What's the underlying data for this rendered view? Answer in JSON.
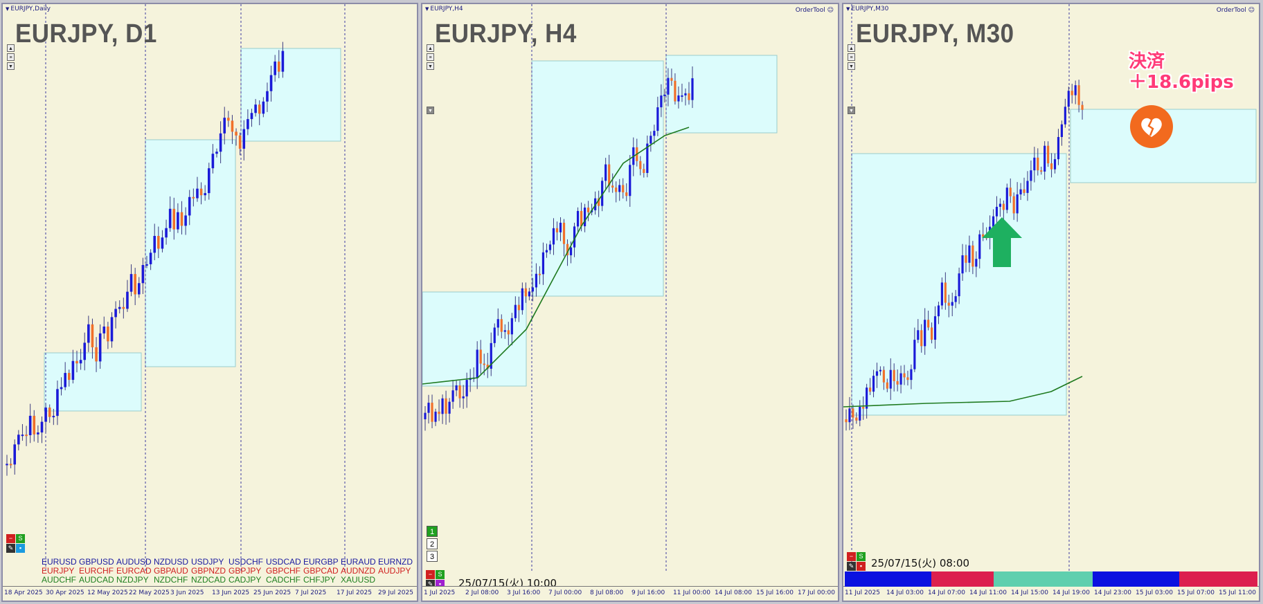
{
  "panels": [
    {
      "window_title": "EURJPY,Daily",
      "big_title": "EURJPY, D1",
      "x_labels": [
        "18 Apr 2025",
        "30 Apr 2025",
        "12 May 2025",
        "22 May 2025",
        "3 Jun 2025",
        "13 Jun 2025",
        "25 Jun 2025",
        "7 Jul 2025",
        "17 Jul 2025",
        "29 Jul 2025"
      ],
      "symbol_list": [
        [
          "EURUSD",
          "GBPUSD",
          "AUDUSD",
          "NZDUSD",
          "USDJPY",
          "USDCHF",
          "USDCAD",
          "EURGBP",
          "EURAUD",
          "EURNZD"
        ],
        [
          "EURJPY",
          "EURCHF",
          "EURCAD",
          "GBPAUD",
          "GBPNZD",
          "GBPJPY",
          "GBPCHF",
          "GBPCAD",
          "AUDNZD",
          "AUDJPY"
        ],
        [
          "AUDCHF",
          "AUDCAD",
          "NZDJPY",
          "NZDCHF",
          "NZDCAD",
          "CADJPY",
          "CADCHF",
          "CHFJPY",
          "XAUUSD"
        ]
      ],
      "symbol_row_colors": [
        "#1a1aa0",
        "#d02020",
        "#208020"
      ]
    },
    {
      "window_title": "EURJPY,H4",
      "big_title": "EURJPY, H4",
      "order_tool": "OrderTool",
      "x_labels": [
        "1 Jul 2025",
        "2 Jul 08:00",
        "3 Jul 16:00",
        "7 Jul 00:00",
        "8 Jul 08:00",
        "9 Jul 16:00",
        "11 Jul 00:00",
        "14 Jul 08:00",
        "15 Jul 16:00",
        "17 Jul 00:00"
      ],
      "timestamp": "25/07/15(火) 10:00",
      "num_buttons": [
        "1",
        "2",
        "3"
      ]
    },
    {
      "window_title": "EURJPY,M30",
      "big_title": "EURJPY, M30",
      "order_tool": "OrderTool",
      "x_labels": [
        "11 Jul 2025",
        "14 Jul 03:00",
        "14 Jul 07:00",
        "14 Jul 11:00",
        "14 Jul 15:00",
        "14 Jul 19:00",
        "14 Jul 23:00",
        "15 Jul 03:00",
        "15 Jul 07:00",
        "15 Jul 11:00"
      ],
      "timestamp": "25/07/15(火) 08:00",
      "settlement_line1": "決済",
      "settlement_line2": "＋18.6pips"
    }
  ],
  "controls": {
    "minus_label": "−",
    "s_label": "S"
  },
  "icons": {
    "heart": "broken-heart-icon",
    "arrow": "up-arrow-icon"
  },
  "colors": {
    "bull": "#1a1ad8",
    "bear": "#f0702a",
    "box": "#dcfcfc",
    "ma": "#1f7a1f",
    "settle": "#ff3a78",
    "arrow": "#1eb060"
  },
  "strength_bar": [
    {
      "color": "#0b12e0",
      "fraction": 0.21
    },
    {
      "color": "#dc1f4e",
      "fraction": 0.15
    },
    {
      "color": "#5fcfae",
      "fraction": 0.24
    },
    {
      "color": "#0b12e0",
      "fraction": 0.21
    },
    {
      "color": "#dc1f4e",
      "fraction": 0.19
    }
  ]
}
